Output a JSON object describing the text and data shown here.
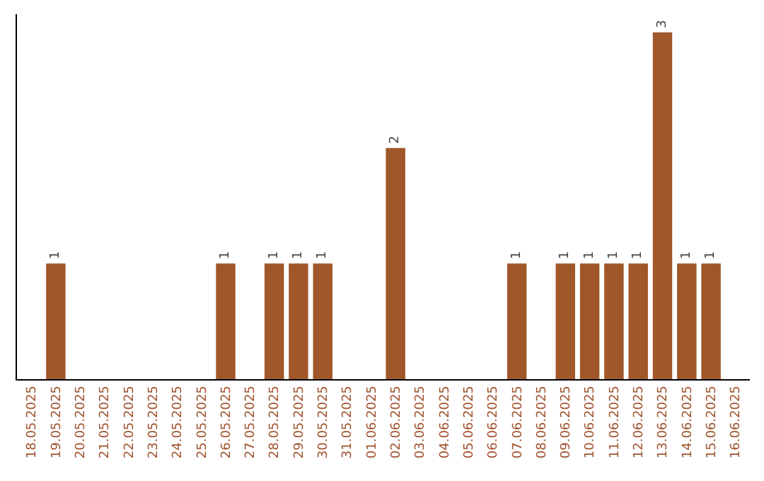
{
  "chart_data": {
    "type": "bar",
    "categories": [
      "18.05.2025",
      "19.05.2025",
      "20.05.2025",
      "21.05.2025",
      "22.05.2025",
      "23.05.2025",
      "24.05.2025",
      "25.05.2025",
      "26.05.2025",
      "27.05.2025",
      "28.05.2025",
      "29.05.2025",
      "30.05.2025",
      "31.05.2025",
      "01.06.2025",
      "02.06.2025",
      "03.06.2025",
      "04.06.2025",
      "05.06.2025",
      "06.06.2025",
      "07.06.2025",
      "08.06.2025",
      "09.06.2025",
      "10.06.2025",
      "11.06.2025",
      "12.06.2025",
      "13.06.2025",
      "14.06.2025",
      "15.06.2025",
      "16.06.2025"
    ],
    "values": [
      0,
      1,
      0,
      0,
      0,
      0,
      0,
      0,
      1,
      0,
      1,
      1,
      1,
      0,
      0,
      2,
      0,
      0,
      0,
      0,
      1,
      0,
      1,
      1,
      1,
      1,
      3,
      1,
      1,
      0
    ],
    "value_labels": [
      null,
      "1",
      null,
      null,
      null,
      null,
      null,
      null,
      "1",
      null,
      "1",
      "1",
      "1",
      null,
      null,
      "2",
      null,
      null,
      null,
      null,
      "1",
      null,
      "1",
      "1",
      "1",
      "1",
      "3",
      "1",
      "1",
      null
    ],
    "color": "#a0572a"
  }
}
